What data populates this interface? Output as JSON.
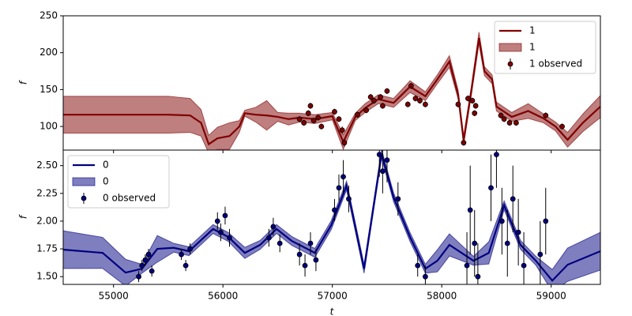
{
  "chart_data": [
    {
      "type": "line",
      "y_label": "f",
      "legend": "upper right",
      "xlim": [
        54540,
        59450
      ],
      "ylim": [
        68,
        250
      ],
      "yticks": [
        100,
        150,
        200,
        250
      ],
      "x": [
        54540,
        55000,
        55500,
        55700,
        55800,
        55870,
        55950,
        56060,
        56150,
        56200,
        56300,
        56400,
        56500,
        56600,
        56700,
        56840,
        57000,
        57100,
        57210,
        57300,
        57420,
        57560,
        57710,
        57850,
        57960,
        58070,
        58150,
        58200,
        58270,
        58340,
        58390,
        58460,
        58500,
        58640,
        58790,
        58930,
        59040,
        59150,
        59290,
        59450
      ],
      "series": [
        {
          "name": "1",
          "type": "line",
          "color": "#800000",
          "values": [
            116,
            116,
            116,
            115,
            105,
            76,
            84,
            87,
            100,
            118,
            116,
            115,
            113,
            110,
            112,
            110,
            114,
            79,
            113,
            125,
            137,
            132,
            154,
            141,
            164,
            188,
            143,
            81,
            148,
            220,
            175,
            164,
            127,
            113,
            121,
            111,
            100,
            82,
            105,
            127
          ]
        },
        {
          "name": "1",
          "type": "band",
          "color": "#800000",
          "lower": [
            91,
            91,
            91,
            92,
            87,
            64,
            69,
            69,
            92,
            114,
            106,
            95,
            107,
            102,
            106,
            104,
            109,
            69,
            108,
            119,
            131,
            126,
            146,
            135,
            158,
            180,
            137,
            75,
            142,
            212,
            169,
            158,
            121,
            107,
            111,
            105,
            94,
            72,
            93,
            112
          ],
          "upper": [
            141,
            141,
            141,
            138,
            123,
            88,
            99,
            105,
            108,
            122,
            126,
            135,
            119,
            118,
            118,
            116,
            119,
            89,
            118,
            131,
            143,
            138,
            162,
            147,
            170,
            196,
            149,
            87,
            154,
            228,
            181,
            170,
            133,
            119,
            131,
            117,
            106,
            92,
            117,
            142
          ]
        },
        {
          "name": "1 observed",
          "type": "errorbar",
          "color": "#800000",
          "x": [
            56700,
            56740,
            56780,
            56800,
            56830,
            56870,
            56900,
            57020,
            57060,
            57090,
            57110,
            57230,
            57310,
            57350,
            57380,
            57440,
            57460,
            57500,
            57690,
            57720,
            57760,
            57800,
            57850,
            58150,
            58200,
            58240,
            58280,
            58300,
            58310,
            58540,
            58570,
            58620,
            58680,
            58950,
            59100
          ],
          "values": [
            110,
            105,
            118,
            128,
            108,
            112,
            100,
            120,
            110,
            95,
            78,
            116,
            122,
            140,
            135,
            140,
            128,
            148,
            130,
            155,
            138,
            135,
            130,
            130,
            78,
            138,
            135,
            118,
            128,
            115,
            110,
            105,
            105,
            115,
            100
          ],
          "errors": [
            4,
            4,
            4,
            4,
            4,
            4,
            4,
            4,
            4,
            5,
            5,
            4,
            4,
            4,
            4,
            4,
            4,
            4,
            4,
            4,
            4,
            4,
            4,
            4,
            4,
            4,
            4,
            4,
            4,
            4,
            4,
            4,
            4,
            4,
            4
          ]
        }
      ]
    },
    {
      "type": "line",
      "y_label": "f",
      "x_label": "t",
      "legend": "upper left",
      "xlim": [
        54540,
        59450
      ],
      "ylim": [
        1.43,
        2.64
      ],
      "xticks": [
        55000,
        56000,
        57000,
        58000,
        59000
      ],
      "yticks": [
        {
          "value": 1.5,
          "label": "1.50"
        },
        1.75,
        {
          "value": 2,
          "label": "2.00"
        },
        2.25,
        {
          "value": 2.5,
          "label": "2.50"
        }
      ],
      "x": [
        54540,
        54900,
        55110,
        55260,
        55400,
        55550,
        55690,
        55910,
        56050,
        56200,
        56340,
        56490,
        56630,
        56840,
        56990,
        57130,
        57290,
        57450,
        57560,
        57710,
        57850,
        57960,
        58070,
        58290,
        58430,
        58570,
        58720,
        58860,
        59010,
        59150,
        59450
      ],
      "series": [
        {
          "name": "0",
          "type": "line",
          "color": "#000080",
          "values": [
            1.743,
            1.714,
            1.536,
            1.571,
            1.75,
            1.76,
            1.729,
            1.929,
            1.857,
            1.714,
            1.786,
            1.929,
            1.821,
            1.714,
            1.964,
            2.321,
            1.571,
            2.607,
            2.214,
            1.857,
            1.571,
            1.643,
            1.786,
            1.643,
            1.714,
            2.143,
            1.786,
            1.643,
            1.464,
            1.607,
            1.729
          ]
        },
        {
          "name": "0",
          "type": "band",
          "color": "#000080",
          "lower": [
            1.573,
            1.574,
            1.416,
            1.531,
            1.63,
            1.72,
            1.689,
            1.889,
            1.817,
            1.664,
            1.746,
            1.889,
            1.781,
            1.674,
            1.924,
            2.281,
            1.531,
            2.567,
            2.174,
            1.817,
            1.531,
            1.543,
            1.686,
            1.603,
            1.614,
            2.103,
            1.746,
            1.603,
            1.364,
            1.457,
            1.559
          ],
          "upper": [
            1.913,
            1.854,
            1.656,
            1.611,
            1.87,
            1.8,
            1.769,
            1.969,
            1.897,
            1.764,
            1.826,
            1.969,
            1.861,
            1.754,
            2.004,
            2.361,
            1.611,
            2.647,
            2.254,
            1.897,
            1.611,
            1.743,
            1.886,
            1.683,
            1.814,
            2.183,
            1.826,
            1.683,
            1.564,
            1.757,
            1.899
          ]
        },
        {
          "name": "0 observed",
          "type": "errorbar",
          "color": "#000080",
          "x": [
            55230,
            55260,
            55290,
            55320,
            55350,
            55620,
            55660,
            55700,
            55950,
            55980,
            56020,
            56060,
            56420,
            56460,
            56520,
            56700,
            56750,
            56800,
            56850,
            57020,
            57060,
            57100,
            57150,
            57430,
            57460,
            57500,
            57600,
            57780,
            57850,
            58230,
            58260,
            58300,
            58330,
            58450,
            58500,
            58550,
            58600,
            58650,
            58700,
            58750,
            58900,
            58950
          ],
          "values": [
            1.5,
            1.6,
            1.65,
            1.7,
            1.55,
            1.7,
            1.6,
            1.75,
            2.0,
            1.9,
            2.05,
            1.85,
            1.85,
            1.95,
            1.8,
            1.7,
            1.6,
            1.8,
            1.65,
            2.1,
            2.3,
            2.4,
            2.2,
            2.6,
            2.45,
            2.55,
            2.2,
            1.6,
            1.5,
            1.6,
            2.1,
            1.8,
            1.5,
            2.3,
            2.6,
            2.0,
            1.8,
            2.2,
            1.9,
            1.6,
            1.7,
            2.0
          ],
          "errors": [
            0.05,
            0.05,
            0.05,
            0.05,
            0.05,
            0.05,
            0.05,
            0.05,
            0.08,
            0.08,
            0.08,
            0.08,
            0.08,
            0.08,
            0.08,
            0.1,
            0.1,
            0.1,
            0.1,
            0.1,
            0.12,
            0.15,
            0.12,
            0.2,
            0.2,
            0.2,
            0.15,
            0.1,
            0.1,
            0.3,
            0.4,
            0.3,
            0.3,
            0.3,
            0.3,
            0.3,
            0.3,
            0.3,
            0.3,
            0.3,
            0.3,
            0.3
          ]
        }
      ]
    }
  ]
}
